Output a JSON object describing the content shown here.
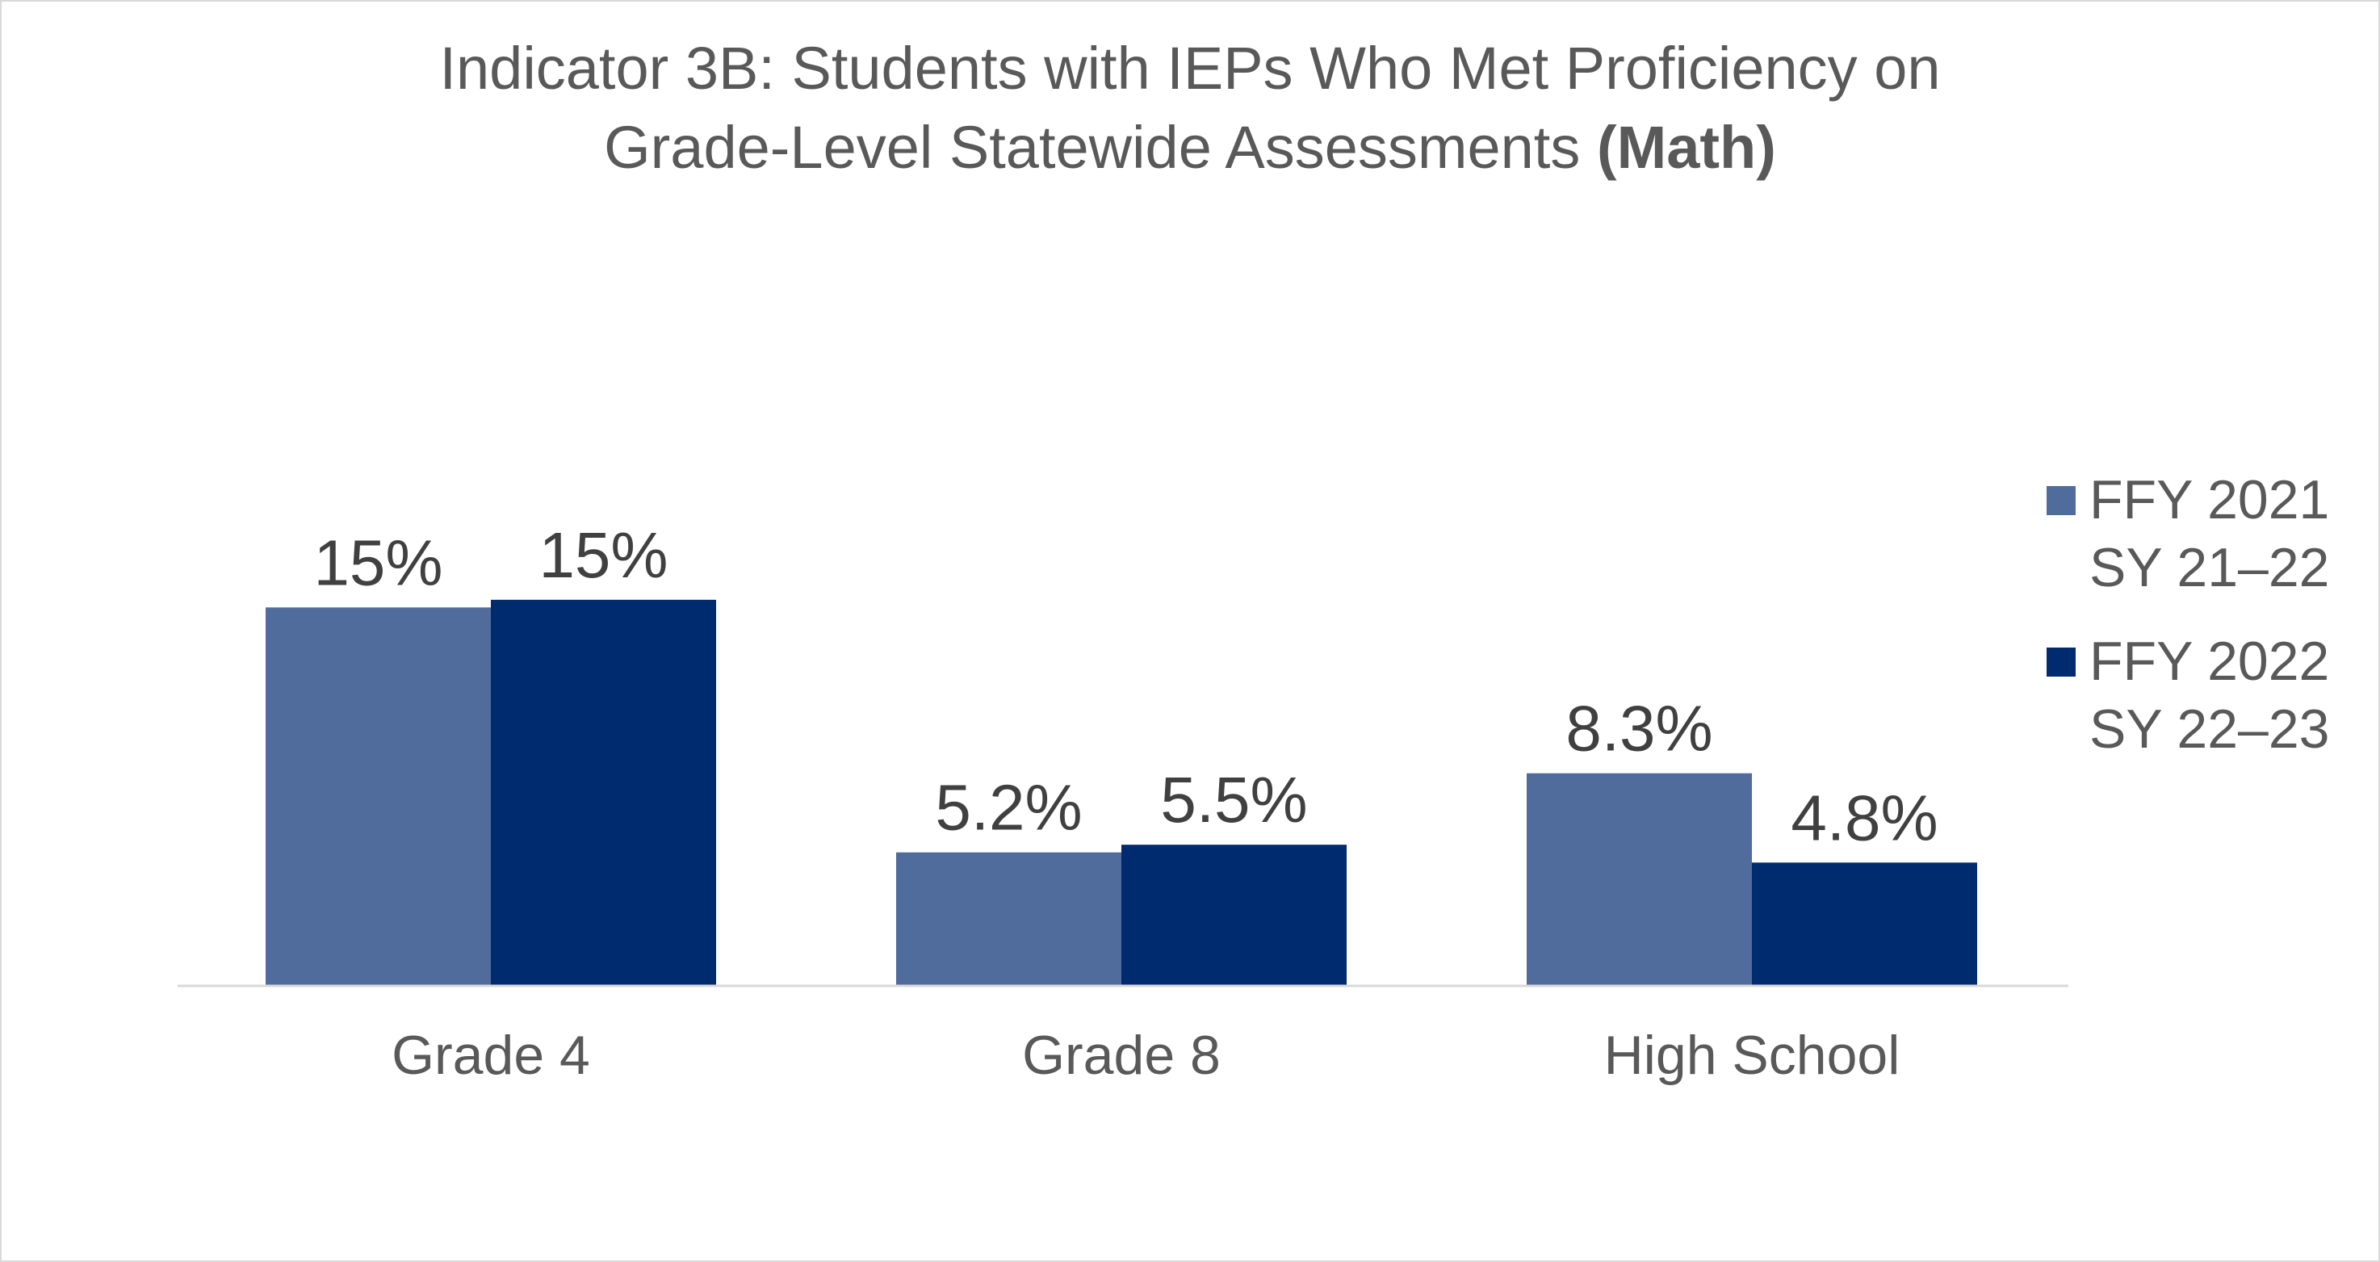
{
  "chart_data": {
    "type": "bar",
    "title": {
      "line1": "Indicator 3B: Students with IEPs Who Met Proficiency on",
      "line2_regular": "Grade-Level Statewide Assessments ",
      "line2_bold": "(Math)"
    },
    "xlabel": "",
    "ylabel": "",
    "categories": [
      "Grade 4",
      "Grade 8",
      "High School"
    ],
    "series": [
      {
        "name_lines": [
          "FFY 2021",
          "SY 21–22"
        ],
        "color": "#4f6c9c",
        "values": [
          14.8,
          5.2,
          8.3
        ],
        "labels": [
          "15%",
          "5.2%",
          "8.3%"
        ]
      },
      {
        "name_lines": [
          "FFY 2022",
          "SY 22–23"
        ],
        "color": "#002b6e",
        "values": [
          15.1,
          5.5,
          4.8
        ],
        "labels": [
          "15%",
          "5.5%",
          "4.8%"
        ]
      }
    ],
    "ylim": [
      0,
      20
    ],
    "grid": false,
    "legend": "right",
    "axis_line_color": "#d9d9d9"
  }
}
